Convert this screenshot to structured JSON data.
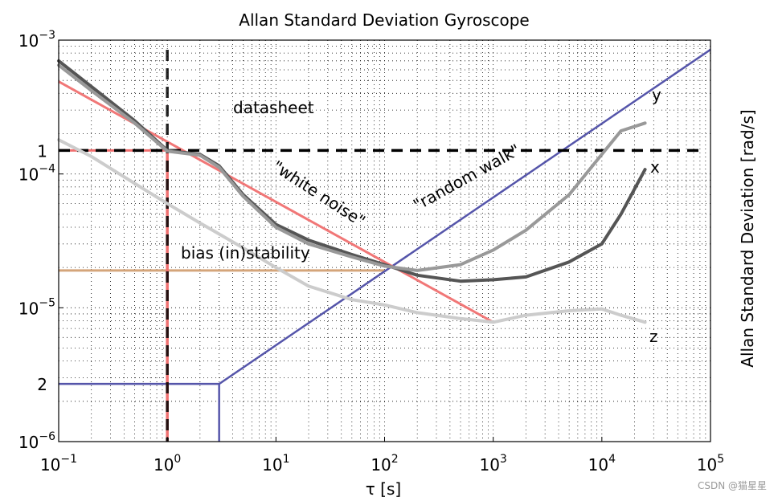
{
  "chart_data": {
    "type": "line",
    "title": "Allan Standard Deviation Gyroscope",
    "xlabel": "τ [s]",
    "ylabel": "Allan Standard Deviation [rad/s]",
    "xscale": "log",
    "yscale": "log",
    "xlim": [
      0.1,
      100000
    ],
    "ylim": [
      1e-06,
      0.001
    ],
    "grid": true,
    "x_ticks": [
      {
        "value": 0.1,
        "base": "10",
        "exp": "−1"
      },
      {
        "value": 1,
        "base": "10",
        "exp": "0"
      },
      {
        "value": 10,
        "base": "10",
        "exp": "1"
      },
      {
        "value": 100,
        "base": "10",
        "exp": "2"
      },
      {
        "value": 1000,
        "base": "10",
        "exp": "3"
      },
      {
        "value": 10000,
        "base": "10",
        "exp": "4"
      },
      {
        "value": 100000,
        "base": "10",
        "exp": "5"
      }
    ],
    "y_ticks": [
      {
        "value": 1e-06,
        "base": "10",
        "exp": "−6"
      },
      {
        "value": 1e-05,
        "base": "10",
        "exp": "−5"
      },
      {
        "value": 0.0001,
        "base": "10",
        "exp": "−4"
      },
      {
        "value": 0.001,
        "base": "10",
        "exp": "−3"
      }
    ],
    "y_marks": [
      {
        "value": 0.00015,
        "label": "1"
      },
      {
        "value": 2.7e-06,
        "label": "2"
      }
    ],
    "series": [
      {
        "name": "z",
        "color": "#cccccc",
        "x": [
          0.1,
          0.2,
          0.5,
          1,
          2,
          5,
          10,
          20,
          50,
          100,
          200,
          500,
          1000,
          2000,
          5000,
          10000,
          15000,
          25000
        ],
        "y": [
          0.00018,
          0.000135,
          8.5e-05,
          6e-05,
          4.3e-05,
          2.8e-05,
          2e-05,
          1.45e-05,
          1.15e-05,
          1.05e-05,
          9.2e-06,
          8.3e-06,
          7.8e-06,
          8.8e-06,
          9.5e-06,
          9.8e-06,
          8.8e-06,
          7.8e-06
        ]
      },
      {
        "name": "x",
        "color": "#555555",
        "x": [
          0.1,
          0.2,
          0.5,
          1,
          2,
          3,
          5,
          10,
          20,
          50,
          100,
          200,
          500,
          1000,
          2000,
          5000,
          10000,
          15000,
          25000
        ],
        "y": [
          0.0007,
          0.00045,
          0.00025,
          0.00015,
          0.00014,
          0.000115,
          7e-05,
          4.2e-05,
          3.2e-05,
          2.5e-05,
          2.1e-05,
          1.75e-05,
          1.58e-05,
          1.62e-05,
          1.7e-05,
          2.2e-05,
          3e-05,
          5e-05,
          0.000108
        ]
      },
      {
        "name": "y",
        "color": "#999999",
        "x": [
          0.1,
          0.2,
          0.5,
          1,
          2,
          3,
          5,
          10,
          20,
          50,
          100,
          200,
          500,
          1000,
          2000,
          5000,
          10000,
          15000,
          25000
        ],
        "y": [
          0.00065,
          0.00042,
          0.00024,
          0.000148,
          0.000138,
          0.000112,
          6.8e-05,
          4e-05,
          3e-05,
          2.4e-05,
          2.05e-05,
          1.9e-05,
          2.1e-05,
          2.7e-05,
          3.8e-05,
          7e-05,
          0.00014,
          0.00021,
          0.00024
        ]
      }
    ],
    "reference_lines": [
      {
        "name": "white-noise-line",
        "color": "#f07070",
        "x": [
          0.1,
          1000
        ],
        "y": [
          0.00049,
          7.8e-06
        ]
      },
      {
        "name": "random-walk-line",
        "color": "#5555aa",
        "x": [
          0.1,
          3,
          100000
        ],
        "y": [
          2.7e-06,
          2.7e-06,
          0.00085
        ]
      },
      {
        "name": "bias-instability-line",
        "color": "#d4a57a",
        "x": [
          0.1,
          100
        ],
        "y": [
          1.9e-05,
          1.9e-05
        ]
      }
    ],
    "annotations": {
      "datasheet": "datasheet",
      "white_noise": "\"white noise\"",
      "random_walk": "\"random walk\"",
      "bias_instability": "bias (in)stability",
      "label_y": "y",
      "label_x": "x",
      "label_z": "z"
    }
  },
  "watermark": "CSDN @猫星星"
}
